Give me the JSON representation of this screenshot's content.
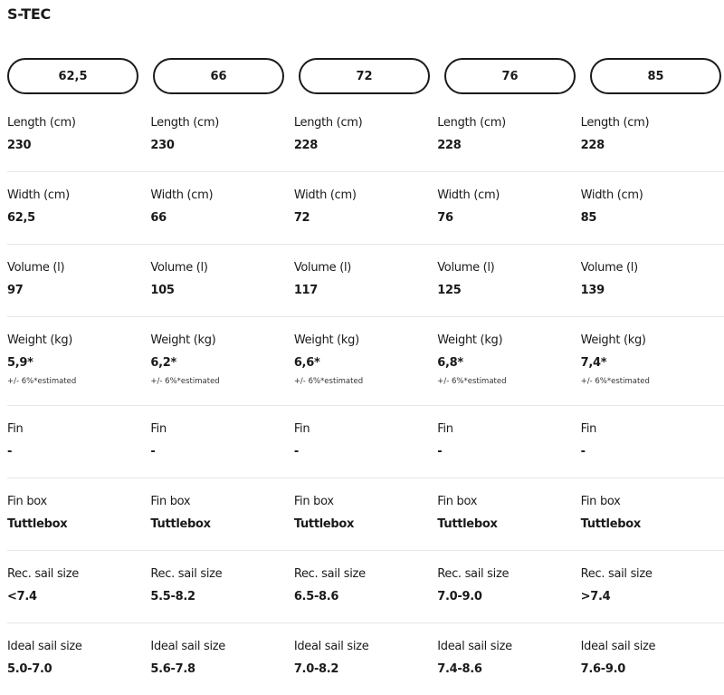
{
  "title": "S-TEC",
  "sizes": [
    "62,5",
    "66",
    "72",
    "76",
    "85"
  ],
  "rows": [
    {
      "label": "Length (cm)",
      "values": [
        "230",
        "230",
        "228",
        "228",
        "228"
      ]
    },
    {
      "label": "Width (cm)",
      "values": [
        "62,5",
        "66",
        "72",
        "76",
        "85"
      ]
    },
    {
      "label": "Volume (l)",
      "values": [
        "97",
        "105",
        "117",
        "125",
        "139"
      ]
    },
    {
      "label": "Weight (kg)",
      "values": [
        "5,9*",
        "6,2*",
        "6,6*",
        "6,8*",
        "7,4*"
      ],
      "note": "+/- 6%*estimated"
    },
    {
      "label": "Fin",
      "values": [
        "-",
        "-",
        "-",
        "-",
        "-"
      ]
    },
    {
      "label": "Fin box",
      "values": [
        "Tuttlebox",
        "Tuttlebox",
        "Tuttlebox",
        "Tuttlebox",
        "Tuttlebox"
      ]
    },
    {
      "label": "Rec. sail size",
      "values": [
        "<7.4",
        "5.5-8.2",
        "6.5-8.6",
        "7.0-9.0",
        ">7.4"
      ]
    },
    {
      "label": "Ideal sail size",
      "values": [
        "5.0-7.0",
        "5.6-7.8",
        "7.0-8.2",
        "7.4-8.6",
        "7.6-9.0"
      ]
    }
  ]
}
